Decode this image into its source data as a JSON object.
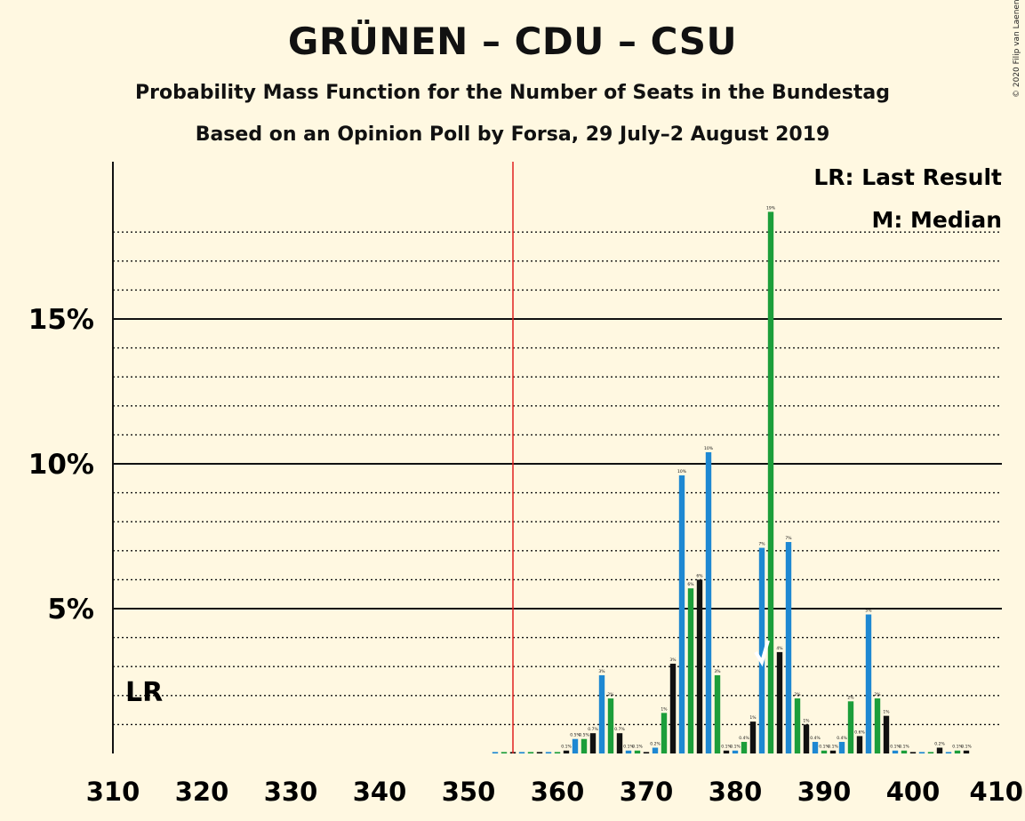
{
  "title": "GRÜNEN – CDU – CSU",
  "subtitle": "Probability Mass Function for the Number of Seats in the Bundestag",
  "source": "Based on an Opinion Poll by Forsa, 29 July–2 August 2019",
  "copyright": "© 2020 Filip van Laenen",
  "legend": {
    "last_result": "LR: Last Result",
    "median": "M: Median"
  },
  "lr_label": "LR",
  "chart_data": {
    "type": "bar",
    "x": [
      353,
      354,
      355,
      356,
      357,
      358,
      359,
      360,
      361,
      362,
      363,
      364,
      365,
      366,
      367,
      368,
      369,
      370,
      371,
      372,
      373,
      374,
      375,
      376,
      377,
      378,
      379,
      380,
      381,
      382,
      383,
      384,
      385,
      386,
      387,
      388,
      389,
      390,
      391,
      392,
      393,
      394,
      395,
      396,
      397,
      398,
      399,
      400,
      401,
      402,
      403,
      404,
      405,
      406
    ],
    "values": [
      0.05,
      0.05,
      0.05,
      0.05,
      0.05,
      0.05,
      0.05,
      0.05,
      0.1,
      0.5,
      0.5,
      0.7,
      2.7,
      1.9,
      0.7,
      0.1,
      0.1,
      0.05,
      0.2,
      1.4,
      3.1,
      9.6,
      5.7,
      6.0,
      10.4,
      2.7,
      0.1,
      0.1,
      0.4,
      1.1,
      7.1,
      18.7,
      3.5,
      7.3,
      1.9,
      1.0,
      0.4,
      0.1,
      0.1,
      0.4,
      1.8,
      0.6,
      4.8,
      1.9,
      1.3,
      0.1,
      0.1,
      0.05,
      0.05,
      0.05,
      0.2,
      0.05,
      0.1,
      0.1
    ],
    "colors": {
      "blue": "#1E88D2",
      "green": "#1C9E3A",
      "black": "#111111",
      "last_result_line": "#E02020",
      "median_mark": "#FFFFFF"
    },
    "xlim": [
      310,
      410
    ],
    "ylim": [
      0,
      20
    ],
    "x_ticks": [
      "310",
      "320",
      "330",
      "340",
      "350",
      "360",
      "370",
      "380",
      "390",
      "400",
      "410"
    ],
    "y_ticks": [
      "5%",
      "10%",
      "15%"
    ],
    "last_result": 355,
    "median": 383,
    "grid": "dotted every 1%, solid at 5% steps",
    "legend_position": "top-right"
  }
}
